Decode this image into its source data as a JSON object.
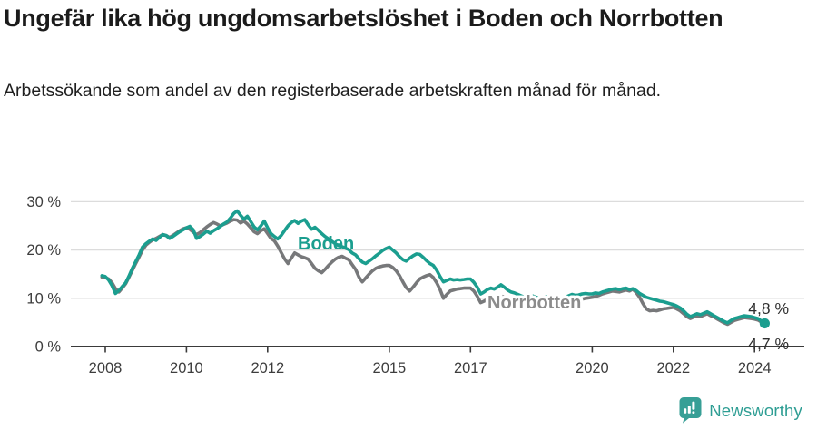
{
  "header": {
    "title": "Ungefär lika hög ungdomsarbetslöshet i Boden och Norrbotten",
    "subtitle": "Arbetssökande som andel av den registerbaserade arbetskraften månad för månad."
  },
  "footer": {
    "brand": "Newsworthy"
  },
  "colors": {
    "boden_teal": "#1b9e8f",
    "norrbotten_gray": "#77787a",
    "norrbotten_label_gray": "#8c8c8c",
    "gridline": "#dcdcdc",
    "axis": "#3a3a3a",
    "tick_text": "#3d3d3d",
    "annotation_text": "#2e2e2e",
    "logo_teal": "#2d9d93"
  },
  "chart_data": {
    "type": "line",
    "title": "Ungefär lika hög ungdomsarbetslöshet i Boden och Norrbotten",
    "subtitle": "Arbetssökande som andel av den registerbaserade arbetskraften månad för månad.",
    "unit": "%",
    "x_start_decimal_year": 2007.9167,
    "x_step_months": 1,
    "x_ticks": [
      2008,
      2010,
      2012,
      2015,
      2017,
      2020,
      2022,
      2024
    ],
    "y_ticks": [
      {
        "value": 0,
        "label": "0 %"
      },
      {
        "value": 10,
        "label": "10 %"
      },
      {
        "value": 20,
        "label": "20 %"
      },
      {
        "value": 30,
        "label": "30 %"
      }
    ],
    "ylim": [
      0,
      30
    ],
    "grid": true,
    "legend_position": "inline-labels",
    "annotations": {
      "boden_label": "Boden",
      "norrbotten_label": "Norrbotten",
      "boden_end_value_label": "4,8 %",
      "norrbotten_end_value_label": "4,7 %"
    },
    "series": [
      {
        "name": "Norrbotten",
        "color": "#77787a",
        "end_value": 4.7,
        "values": [
          14.4,
          14.3,
          14.0,
          13.2,
          12.0,
          11.3,
          12.1,
          13.0,
          14.4,
          15.8,
          17.2,
          18.6,
          20.0,
          21.0,
          21.6,
          22.1,
          22.4,
          22.8,
          23.2,
          23.0,
          22.6,
          23.0,
          23.5,
          24.0,
          24.4,
          24.6,
          24.3,
          23.7,
          23.2,
          23.6,
          24.2,
          24.8,
          25.3,
          25.7,
          25.4,
          25.0,
          25.3,
          25.6,
          26.0,
          26.3,
          26.2,
          25.6,
          26.0,
          25.4,
          24.6,
          23.8,
          23.4,
          24.0,
          24.4,
          23.4,
          22.4,
          21.9,
          20.8,
          19.5,
          18.2,
          17.2,
          18.3,
          19.4,
          19.0,
          18.6,
          18.4,
          18.1,
          17.2,
          16.2,
          15.7,
          15.3,
          16.0,
          16.8,
          17.5,
          18.1,
          18.5,
          18.7,
          18.3,
          18.0,
          17.0,
          16.0,
          14.4,
          13.4,
          14.2,
          15.0,
          15.7,
          16.2,
          16.5,
          16.7,
          16.8,
          16.8,
          16.4,
          15.7,
          14.7,
          13.4,
          12.2,
          11.5,
          12.3,
          13.2,
          14.0,
          14.4,
          14.7,
          14.9,
          14.3,
          13.2,
          11.8,
          10.0,
          10.8,
          11.5,
          11.7,
          11.9,
          12.0,
          12.1,
          12.1,
          12.1,
          11.5,
          10.4,
          9.1,
          9.4,
          9.8,
          10.1,
          9.9,
          10.2,
          10.5,
          10.2,
          9.7,
          9.4,
          9.2,
          9.0,
          8.8,
          8.7,
          8.9,
          9.1,
          8.9,
          8.8,
          8.7,
          8.9,
          9.1,
          9.3,
          9.1,
          9.0,
          8.9,
          9.1,
          9.4,
          9.7,
          9.5,
          9.6,
          9.8,
          10.0,
          10.1,
          10.2,
          10.4,
          10.6,
          10.9,
          11.1,
          11.3,
          11.5,
          11.4,
          11.3,
          11.5,
          11.7,
          11.5,
          11.9,
          11.2,
          10.2,
          8.9,
          7.8,
          7.4,
          7.5,
          7.4,
          7.6,
          7.8,
          7.9,
          8.0,
          8.1,
          7.8,
          7.4,
          6.8,
          6.2,
          5.8,
          6.1,
          6.4,
          6.2,
          6.5,
          6.8,
          6.4,
          6.1,
          5.7,
          5.3,
          4.9,
          4.6,
          5.0,
          5.4,
          5.6,
          5.8,
          6.0,
          5.9,
          5.8,
          5.7,
          5.5,
          5.1,
          4.7
        ]
      },
      {
        "name": "Boden",
        "color": "#1b9e8f",
        "end_value": 4.8,
        "values": [
          14.7,
          14.5,
          13.8,
          12.6,
          11.0,
          11.6,
          12.4,
          13.2,
          14.6,
          16.2,
          17.6,
          19.0,
          20.6,
          21.3,
          21.8,
          22.3,
          22.0,
          22.6,
          23.2,
          23.0,
          22.4,
          22.8,
          23.3,
          23.8,
          24.2,
          24.6,
          24.9,
          24.2,
          22.4,
          22.8,
          23.3,
          23.9,
          23.5,
          24.0,
          24.4,
          24.9,
          25.4,
          25.8,
          26.6,
          27.6,
          28.1,
          27.2,
          26.4,
          27.0,
          25.9,
          24.8,
          24.2,
          25.0,
          26.0,
          24.6,
          23.4,
          22.8,
          22.3,
          23.0,
          24.0,
          25.0,
          25.7,
          26.1,
          25.5,
          26.0,
          26.3,
          25.2,
          24.3,
          24.7,
          24.1,
          23.4,
          22.8,
          22.3,
          21.8,
          21.3,
          20.9,
          20.7,
          20.4,
          20.1,
          19.4,
          19.0,
          18.2,
          17.5,
          17.2,
          17.7,
          18.2,
          18.8,
          19.3,
          19.9,
          20.3,
          20.6,
          20.0,
          19.4,
          18.6,
          18.0,
          17.7,
          18.3,
          18.8,
          19.2,
          19.1,
          18.5,
          17.8,
          17.2,
          16.8,
          15.8,
          14.5,
          13.4,
          13.7,
          14.0,
          13.8,
          13.9,
          13.8,
          13.9,
          14.0,
          14.0,
          13.3,
          12.3,
          10.9,
          11.3,
          11.8,
          12.1,
          11.9,
          12.3,
          12.8,
          12.3,
          11.7,
          11.3,
          11.1,
          10.8,
          10.5,
          10.2,
          10.4,
          10.6,
          10.3,
          10.1,
          10.0,
          10.2,
          10.4,
          10.6,
          10.4,
          10.2,
          10.0,
          10.2,
          10.5,
          10.8,
          10.6,
          10.7,
          10.9,
          11.0,
          10.9,
          10.9,
          11.1,
          11.0,
          11.3,
          11.5,
          11.7,
          11.9,
          12.0,
          11.8,
          12.0,
          12.1,
          11.8,
          12.0,
          11.6,
          11.0,
          10.6,
          10.2,
          10.0,
          9.8,
          9.6,
          9.4,
          9.3,
          9.1,
          8.9,
          8.7,
          8.4,
          8.0,
          7.4,
          6.7,
          6.2,
          6.5,
          6.8,
          6.6,
          6.9,
          7.2,
          6.8,
          6.4,
          6.0,
          5.6,
          5.2,
          4.9,
          5.4,
          5.8,
          6.0,
          6.2,
          6.4,
          6.3,
          6.2,
          6.0,
          5.8,
          5.3,
          4.8
        ]
      }
    ]
  }
}
